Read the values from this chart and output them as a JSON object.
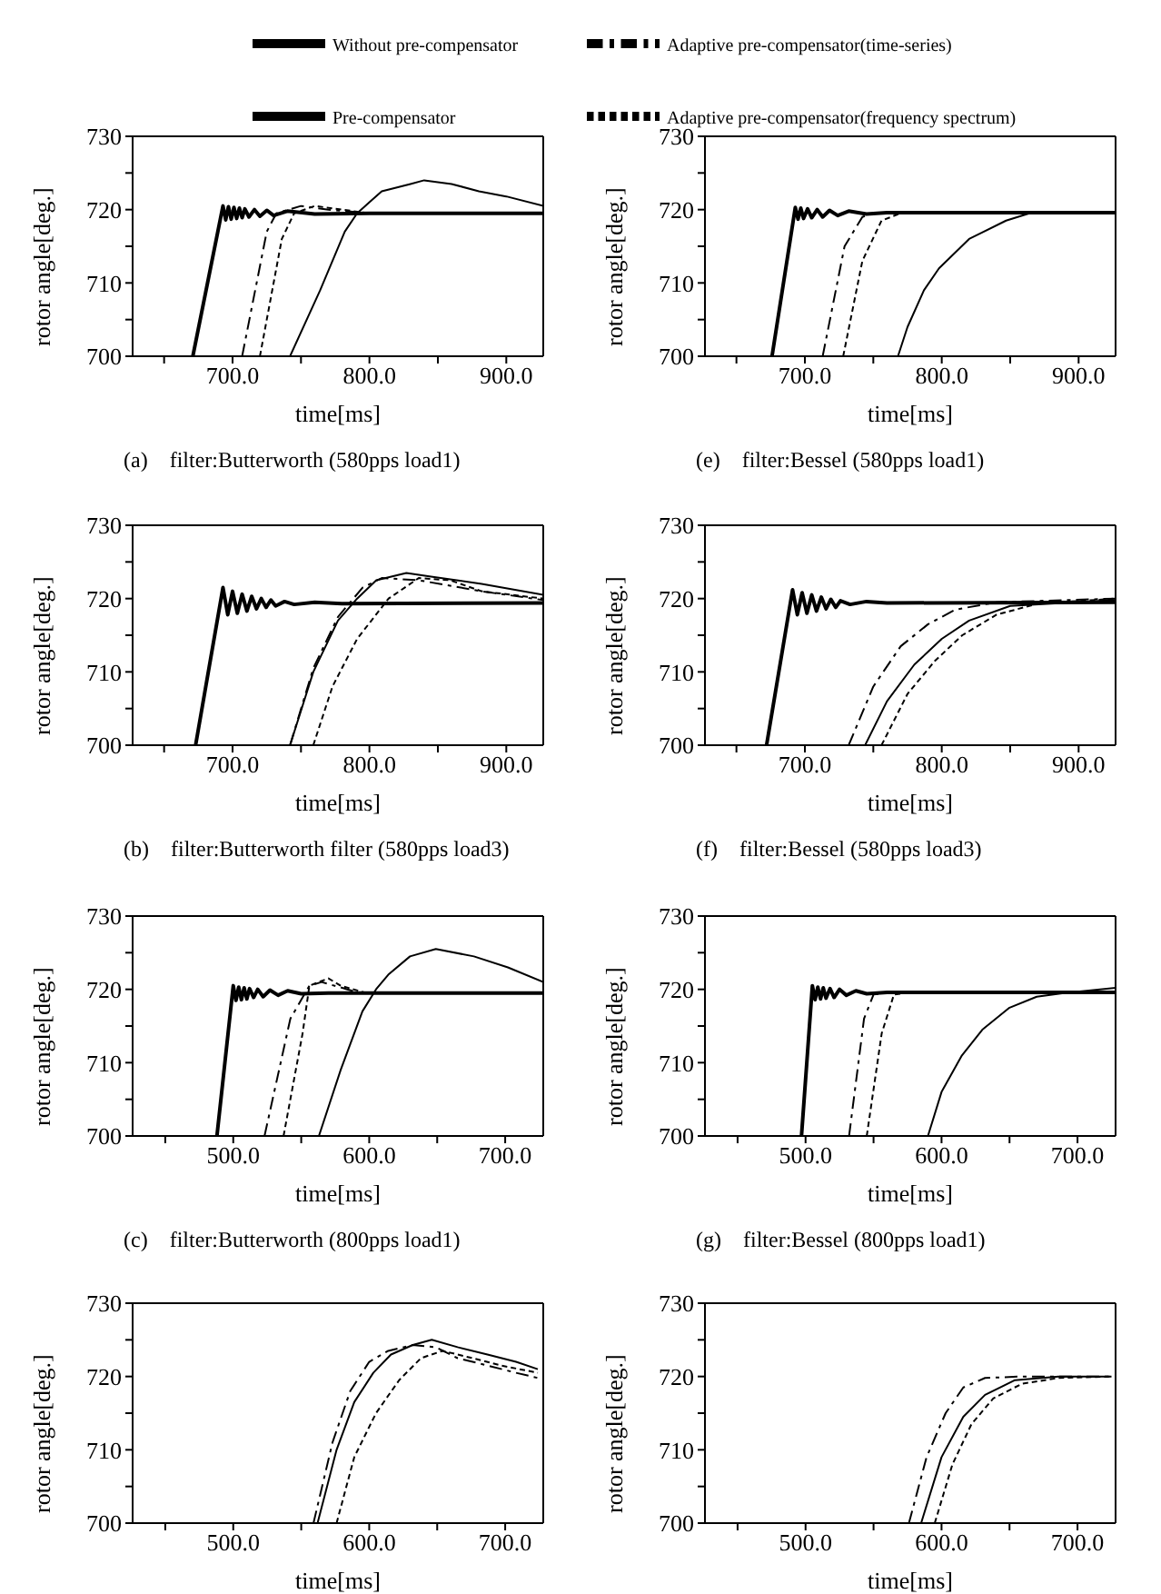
{
  "chart_data": [
    {
      "type": "line",
      "title": "(a)    filter:Butterworth (580pps load1)",
      "xlabel": "time[ms]",
      "ylabel": "rotor angle[deg.]",
      "legend": "top",
      "xlim": [
        627,
        927
      ],
      "ylim": [
        700,
        730
      ],
      "xticks": [
        {
          "value": 650,
          "label": null
        },
        {
          "value": 700,
          "label": "700.0"
        },
        {
          "value": 750,
          "label": null
        },
        {
          "value": 800,
          "label": "800.0"
        },
        {
          "value": 850,
          "label": null
        },
        {
          "value": 900,
          "label": "900.0"
        }
      ],
      "yticks": [
        700,
        {
          "value": 705,
          "label": null
        },
        710,
        {
          "value": 715,
          "label": null
        },
        720,
        {
          "value": 725,
          "label": null
        },
        730
      ],
      "series": [
        {
          "name": "Pre-compensator",
          "color": "#000000",
          "line_style": "solid",
          "x": [
            742,
            764,
            782,
            791,
            800,
            809,
            830,
            840,
            860,
            880,
            900,
            927
          ],
          "values": [
            700,
            709,
            717,
            719.5,
            721,
            722.5,
            723.5,
            724,
            723.5,
            722.5,
            721.8,
            720.5
          ]
        },
        {
          "name": "Adaptive pre-compensator(time-series)",
          "color": "#000000",
          "line_style": "dashed",
          "x": [
            707,
            725,
            732,
            750,
            770,
            800,
            927
          ],
          "values": [
            700,
            717,
            719.5,
            720.5,
            720,
            719.5,
            719.5
          ]
        },
        {
          "name": "Adaptive pre-compensator(frequency spectrum)",
          "color": "#000000",
          "line_style": "dotted",
          "x": [
            720,
            736,
            745,
            760,
            780,
            800,
            927
          ],
          "values": [
            700,
            716,
            719.5,
            720.5,
            720,
            719.5,
            719.5
          ]
        },
        {
          "name": "Without pre-compensator",
          "color": "#000000",
          "line_style": "solid",
          "x": [
            671,
            693,
            695,
            697,
            699,
            701,
            703,
            705,
            707,
            709,
            712,
            716,
            720,
            725,
            730,
            740,
            760,
            800,
            927
          ],
          "values": [
            700,
            720.5,
            718.6,
            720.4,
            718.7,
            720.3,
            718.8,
            720.2,
            718.9,
            720.1,
            719,
            720,
            719.1,
            719.9,
            719.2,
            719.8,
            719.4,
            719.5,
            719.5
          ]
        }
      ]
    },
    {
      "type": "line",
      "title": "(e)    filter:Bessel (580pps load1)",
      "xlabel": "time[ms]",
      "ylabel": "rotor angle[deg.]",
      "xlim": [
        627,
        927
      ],
      "ylim": [
        700,
        730
      ],
      "xticks": [
        {
          "value": 650,
          "label": null
        },
        {
          "value": 700,
          "label": "700.0"
        },
        {
          "value": 750,
          "label": null
        },
        {
          "value": 800,
          "label": "800.0"
        },
        {
          "value": 850,
          "label": null
        },
        {
          "value": 900,
          "label": "900.0"
        }
      ],
      "yticks": [
        700,
        {
          "value": 705,
          "label": null
        },
        710,
        {
          "value": 715,
          "label": null
        },
        720,
        {
          "value": 725,
          "label": null
        },
        730
      ],
      "series": [
        {
          "color": "#000000",
          "line_style": "solid",
          "x": [
            768,
            775,
            787,
            798,
            820,
            847,
            864,
            927
          ],
          "values": [
            700,
            704,
            709,
            712,
            716,
            718.5,
            719.5,
            719.7
          ]
        },
        {
          "color": "#000000",
          "line_style": "dashed",
          "x": [
            713,
            729,
            742,
            750,
            927
          ],
          "values": [
            700,
            715,
            719,
            719.5,
            719.5
          ]
        },
        {
          "color": "#000000",
          "line_style": "dotted",
          "x": [
            728,
            742,
            756,
            770,
            927
          ],
          "values": [
            700,
            713,
            718.5,
            719.5,
            719.5
          ]
        },
        {
          "color": "#000000",
          "line_style": "solid",
          "x": [
            676,
            693,
            695,
            697,
            699,
            702,
            705,
            709,
            713,
            718,
            724,
            732,
            745,
            760,
            927
          ],
          "values": [
            700,
            720.3,
            718.7,
            720.2,
            718.8,
            720.1,
            718.9,
            720,
            719,
            719.9,
            719.2,
            719.8,
            719.4,
            719.6,
            719.6
          ]
        }
      ]
    },
    {
      "type": "line",
      "title": "(b)    filter:Butterworth filter (580pps load3)",
      "xlabel": "time[ms]",
      "ylabel": "rotor angle[deg.]",
      "xlim": [
        627,
        927
      ],
      "ylim": [
        700,
        730
      ],
      "xticks": [
        {
          "value": 650,
          "label": null
        },
        {
          "value": 700,
          "label": "700.0"
        },
        {
          "value": 750,
          "label": null
        },
        {
          "value": 800,
          "label": "800.0"
        },
        {
          "value": 850,
          "label": null
        },
        {
          "value": 900,
          "label": "900.0"
        }
      ],
      "yticks": [
        700,
        {
          "value": 705,
          "label": null
        },
        710,
        {
          "value": 715,
          "label": null
        },
        720,
        {
          "value": 725,
          "label": null
        },
        730
      ],
      "series": [
        {
          "color": "#000000",
          "line_style": "solid",
          "x": [
            742,
            759,
            777,
            791,
            805,
            827,
            845,
            882,
            927
          ],
          "values": [
            700,
            710,
            717,
            720,
            722.5,
            723.5,
            723,
            722,
            720.5
          ]
        },
        {
          "color": "#000000",
          "line_style": "dashed",
          "x": [
            742,
            759,
            777,
            795,
            809,
            836,
            882,
            927
          ],
          "values": [
            700,
            710.5,
            717.5,
            721.5,
            722.8,
            722.5,
            721,
            719.8
          ]
        },
        {
          "color": "#000000",
          "line_style": "dotted",
          "x": [
            759,
            773,
            791,
            814,
            836,
            859,
            882,
            927
          ],
          "values": [
            700,
            708,
            714.5,
            720,
            722.8,
            722.5,
            721,
            720
          ]
        },
        {
          "color": "#000000",
          "line_style": "solid",
          "x": [
            673,
            693,
            696.5,
            700,
            703.5,
            707,
            710.5,
            714,
            717.5,
            721,
            724.5,
            728,
            731.5,
            738,
            745,
            760,
            780,
            927
          ],
          "values": [
            700,
            721.5,
            717.8,
            721,
            718,
            720.6,
            718.3,
            720.3,
            718.6,
            720,
            718.8,
            719.8,
            719,
            719.6,
            719.2,
            719.5,
            719.3,
            719.4
          ]
        }
      ]
    },
    {
      "type": "line",
      "title": "(f)    filter:Bessel (580pps load3)",
      "xlabel": "time[ms]",
      "ylabel": "rotor angle[deg.]",
      "xlim": [
        627,
        927
      ],
      "ylim": [
        700,
        730
      ],
      "xticks": [
        {
          "value": 650,
          "label": null
        },
        {
          "value": 700,
          "label": "700.0"
        },
        {
          "value": 750,
          "label": null
        },
        {
          "value": 800,
          "label": "800.0"
        },
        {
          "value": 850,
          "label": null
        },
        {
          "value": 900,
          "label": "900.0"
        }
      ],
      "yticks": [
        700,
        {
          "value": 705,
          "label": null
        },
        710,
        {
          "value": 715,
          "label": null
        },
        720,
        {
          "value": 725,
          "label": null
        },
        730
      ],
      "series": [
        {
          "color": "#000000",
          "line_style": "solid",
          "x": [
            744,
            760,
            780,
            800,
            820,
            850,
            927
          ],
          "values": [
            700,
            706,
            711,
            714.5,
            717,
            719,
            719.8
          ]
        },
        {
          "color": "#000000",
          "line_style": "dashed",
          "x": [
            732,
            750,
            770,
            790,
            810,
            840,
            927
          ],
          "values": [
            700,
            708,
            713.5,
            716.5,
            718.5,
            719.5,
            720
          ]
        },
        {
          "color": "#000000",
          "line_style": "dotted",
          "x": [
            756,
            775,
            795,
            815,
            840,
            870,
            927
          ],
          "values": [
            700,
            707,
            711.5,
            715,
            717.8,
            719.3,
            720
          ]
        },
        {
          "color": "#000000",
          "line_style": "solid",
          "x": [
            672,
            691,
            694.5,
            698,
            701.5,
            705,
            708.5,
            712,
            715.5,
            719,
            722.5,
            726,
            733,
            745,
            760,
            927
          ],
          "values": [
            700,
            721.2,
            717.8,
            720.8,
            718,
            720.5,
            718.3,
            720.2,
            718.6,
            719.9,
            718.8,
            719.7,
            719.2,
            719.6,
            719.4,
            719.5
          ]
        }
      ]
    },
    {
      "type": "line",
      "title": "(c)    filter:Butterworth (800pps load1)",
      "xlabel": "time[ms]",
      "ylabel": "rotor angle[deg.]",
      "xlim": [
        426,
        728
      ],
      "ylim": [
        700,
        730
      ],
      "xticks": [
        {
          "value": 450,
          "label": null
        },
        {
          "value": 500,
          "label": "500.0"
        },
        {
          "value": 550,
          "label": null
        },
        {
          "value": 600,
          "label": "600.0"
        },
        {
          "value": 650,
          "label": null
        },
        {
          "value": 700,
          "label": "700.0"
        }
      ],
      "yticks": [
        700,
        {
          "value": 705,
          "label": null
        },
        710,
        {
          "value": 715,
          "label": null
        },
        720,
        {
          "value": 725,
          "label": null
        },
        730
      ],
      "series": [
        {
          "color": "#000000",
          "line_style": "solid",
          "x": [
            563,
            579,
            595,
            605,
            614,
            630,
            649,
            677,
            702,
            728
          ],
          "values": [
            700,
            709,
            717,
            720,
            722,
            724.5,
            725.5,
            724.5,
            723,
            721
          ]
        },
        {
          "color": "#000000",
          "line_style": "dashed",
          "x": [
            523,
            542,
            556,
            565,
            584,
            593,
            728
          ],
          "values": [
            700,
            716,
            720.5,
            721,
            720,
            719.5,
            719.5
          ]
        },
        {
          "color": "#000000",
          "line_style": "dotted",
          "x": [
            537,
            551,
            556,
            570,
            579,
            598,
            728
          ],
          "values": [
            700,
            714,
            720.5,
            721.5,
            720.5,
            719.5,
            719.5
          ]
        },
        {
          "color": "#000000",
          "line_style": "solid",
          "x": [
            488,
            500,
            502,
            504,
            506,
            508,
            510,
            512,
            515,
            518,
            522,
            527,
            533,
            540,
            550,
            570,
            728
          ],
          "values": [
            700,
            720.5,
            718.5,
            720.3,
            718.6,
            720.2,
            718.7,
            720.1,
            718.9,
            720,
            719,
            719.9,
            719.2,
            719.8,
            719.4,
            719.5,
            719.5
          ]
        }
      ]
    },
    {
      "type": "line",
      "title": "(g)    filter:Bessel (800pps load1)",
      "xlabel": "time[ms]",
      "ylabel": "rotor angle[deg.]",
      "xlim": [
        426,
        728
      ],
      "ylim": [
        700,
        730
      ],
      "xticks": [
        {
          "value": 450,
          "label": null
        },
        {
          "value": 500,
          "label": "500.0"
        },
        {
          "value": 550,
          "label": null
        },
        {
          "value": 600,
          "label": "600.0"
        },
        {
          "value": 650,
          "label": null
        },
        {
          "value": 700,
          "label": "700.0"
        }
      ],
      "yticks": [
        700,
        {
          "value": 705,
          "label": null
        },
        710,
        {
          "value": 715,
          "label": null
        },
        720,
        {
          "value": 725,
          "label": null
        },
        730
      ],
      "series": [
        {
          "color": "#000000",
          "line_style": "solid",
          "x": [
            590,
            600,
            615,
            630,
            650,
            670,
            690,
            728
          ],
          "values": [
            700,
            706,
            711,
            714.5,
            717.5,
            719,
            719.5,
            720.2
          ]
        },
        {
          "color": "#000000",
          "line_style": "dashed",
          "x": [
            532,
            543,
            550,
            560,
            728
          ],
          "values": [
            700,
            716,
            719.3,
            719.5,
            719.5
          ]
        },
        {
          "color": "#000000",
          "line_style": "dotted",
          "x": [
            545,
            556,
            565,
            575,
            728
          ],
          "values": [
            700,
            714,
            719.3,
            719.5,
            719.5
          ]
        },
        {
          "color": "#000000",
          "line_style": "solid",
          "x": [
            497,
            505,
            507,
            509,
            511,
            513,
            515,
            518,
            521,
            525,
            530,
            537,
            545,
            560,
            728
          ],
          "values": [
            700,
            720.5,
            718.6,
            720.3,
            718.7,
            720.2,
            718.8,
            720.1,
            718.9,
            720,
            719.2,
            719.8,
            719.4,
            719.6,
            719.6
          ]
        }
      ]
    },
    {
      "type": "line",
      "xlabel": "time[ms]",
      "ylabel": "rotor angle[deg.]",
      "xlim": [
        426,
        728
      ],
      "ylim": [
        700,
        730
      ],
      "xticks": [
        {
          "value": 450,
          "label": null
        },
        {
          "value": 500,
          "label": "500.0"
        },
        {
          "value": 550,
          "label": null
        },
        {
          "value": 600,
          "label": "600.0"
        },
        {
          "value": 650,
          "label": null
        },
        {
          "value": 700,
          "label": "700.0"
        }
      ],
      "yticks": [
        700,
        {
          "value": 705,
          "label": null
        },
        710,
        {
          "value": 715,
          "label": null
        },
        720,
        {
          "value": 725,
          "label": null
        },
        730
      ],
      "series": [
        {
          "color": "#000000",
          "line_style": "solid",
          "x": [
            562,
            576,
            589,
            603,
            616,
            632,
            646,
            665,
            687,
            708,
            724
          ],
          "values": [
            700,
            710,
            716.5,
            720.5,
            723,
            724.3,
            725,
            724,
            723,
            722,
            721
          ]
        },
        {
          "color": "#000000",
          "line_style": "dashed",
          "x": [
            559,
            573,
            586,
            600,
            614,
            632,
            649,
            665,
            687,
            708,
            724
          ],
          "values": [
            700,
            711,
            718,
            722,
            723.5,
            724.3,
            724,
            722.5,
            721.5,
            720.5,
            719.8
          ]
        },
        {
          "color": "#000000",
          "line_style": "dotted",
          "x": [
            576,
            589,
            605,
            622,
            638,
            654,
            676,
            697,
            724
          ],
          "values": [
            700,
            709,
            715,
            719.5,
            722.5,
            723.5,
            722.5,
            721.5,
            720.5
          ]
        }
      ]
    },
    {
      "type": "line",
      "xlabel": "time[ms]",
      "ylabel": "rotor angle[deg.]",
      "xlim": [
        426,
        728
      ],
      "ylim": [
        700,
        730
      ],
      "xticks": [
        {
          "value": 450,
          "label": null
        },
        {
          "value": 500,
          "label": "500.0"
        },
        {
          "value": 550,
          "label": null
        },
        {
          "value": 600,
          "label": "600.0"
        },
        {
          "value": 650,
          "label": null
        },
        {
          "value": 700,
          "label": "700.0"
        }
      ],
      "yticks": [
        700,
        {
          "value": 705,
          "label": null
        },
        710,
        {
          "value": 715,
          "label": null
        },
        720,
        {
          "value": 725,
          "label": null
        },
        730
      ],
      "series": [
        {
          "color": "#000000",
          "line_style": "solid",
          "x": [
            585,
            600,
            616,
            632,
            654,
            686,
            725
          ],
          "values": [
            700,
            709,
            714.5,
            717.5,
            719.5,
            720,
            720
          ]
        },
        {
          "color": "#000000",
          "line_style": "dashed",
          "x": [
            576,
            589,
            603,
            616,
            632,
            659,
            700,
            725
          ],
          "values": [
            700,
            709,
            715,
            718.5,
            719.8,
            720,
            720,
            720
          ]
        },
        {
          "color": "#000000",
          "line_style": "dotted",
          "x": [
            595,
            608,
            622,
            638,
            659,
            686,
            725
          ],
          "values": [
            700,
            708,
            713.5,
            717,
            719,
            719.8,
            720
          ]
        }
      ]
    }
  ]
}
